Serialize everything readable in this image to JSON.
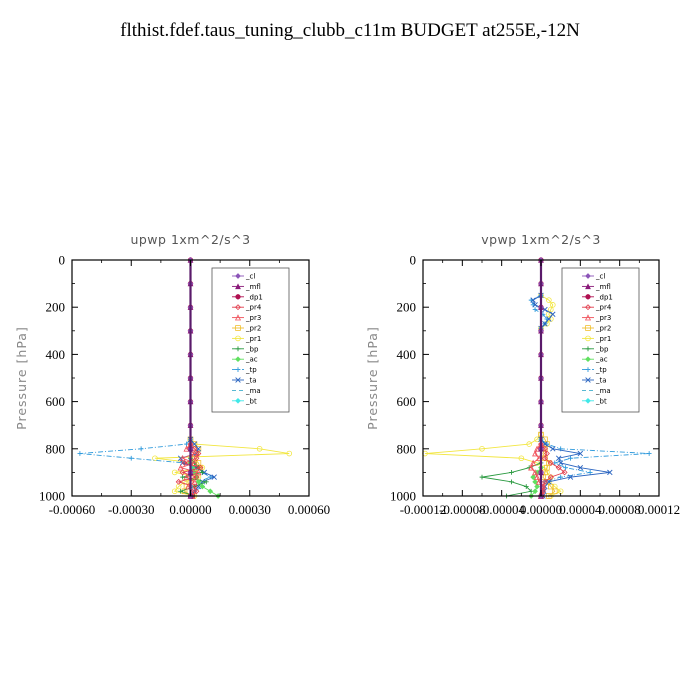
{
  "page_title": "flthist.fdef.taus_tuning_clubb_c11m  BUDGET at255E,-12N",
  "legend_entries": [
    {
      "label": "_cl",
      "color": "#8c55b8",
      "marker": "diamond"
    },
    {
      "label": "_mfl",
      "color": "#8a1a7a",
      "marker": "triangle"
    },
    {
      "label": "_dp1",
      "color": "#b01050",
      "marker": "circle"
    },
    {
      "label": "_pr4",
      "color": "#e23c4c",
      "marker": "diamond-open"
    },
    {
      "label": "_pr3",
      "color": "#f0505a",
      "marker": "triangle-open"
    },
    {
      "label": "_pr2",
      "color": "#f0c030",
      "marker": "square-open"
    },
    {
      "label": "_pr1",
      "color": "#f2e640",
      "marker": "circle-open"
    },
    {
      "label": "_bp",
      "color": "#2a9a40",
      "marker": "plus"
    },
    {
      "label": "_ac",
      "color": "#5fe05f",
      "marker": "diamond"
    },
    {
      "label": "_tp",
      "color": "#2f9adc",
      "marker": "plus"
    },
    {
      "label": "_ta",
      "color": "#2a64c0",
      "marker": "x"
    },
    {
      "label": "_ma",
      "color": "#40aecc",
      "marker": "none"
    },
    {
      "label": "_bt",
      "color": "#40e8e8",
      "marker": "diamond"
    }
  ],
  "chart_data": [
    {
      "type": "line",
      "title": "upwp   1xm^2/s^3",
      "xlabel": "",
      "ylabel": "Pressure [hPa]",
      "xlim": [
        -0.0006,
        0.0006
      ],
      "ylim": [
        1000,
        0
      ],
      "xticks": [
        "-0.00060",
        "-0.00030",
        "0.00000",
        "0.00030",
        "0.00060"
      ],
      "yticks": [
        "0",
        "200",
        "400",
        "600",
        "800",
        "1000"
      ],
      "legend_position": "top-right",
      "series": [
        {
          "name": "_pr1",
          "y": [
            760,
            780,
            800,
            820,
            840,
            860,
            880,
            900,
            920,
            940,
            960,
            980,
            1000
          ],
          "x": [
            0,
            2e-05,
            0.00035,
            0.0005,
            -0.00018,
            2e-05,
            6e-05,
            -8e-05,
            4e-05,
            -3e-05,
            -6e-05,
            -8e-05,
            2e-05
          ]
        },
        {
          "name": "_pr2",
          "y": [
            760,
            780,
            800,
            820,
            840,
            860,
            880,
            900,
            920,
            940,
            960,
            980,
            1000
          ],
          "x": [
            0,
            2e-05,
            4e-05,
            3e-05,
            2e-05,
            4e-05,
            5e-05,
            2e-05,
            3e-05,
            0.0,
            -2e-05,
            -3e-05,
            1e-05
          ]
        },
        {
          "name": "_tp",
          "y": [
            760,
            780,
            800,
            820,
            840,
            860,
            880,
            900,
            920,
            940,
            960,
            980,
            1000
          ],
          "x": [
            0,
            -2e-05,
            -0.00025,
            -0.00056,
            -0.0003,
            -3e-05,
            3e-05,
            6e-05,
            0.0001,
            4e-05,
            6e-05,
            2e-05,
            1e-05
          ]
        },
        {
          "name": "_ta",
          "y": [
            760,
            780,
            800,
            820,
            840,
            860,
            880,
            900,
            920,
            940,
            960,
            980,
            1000
          ],
          "x": [
            0,
            2e-05,
            4e-05,
            3e-05,
            -5e-05,
            -4e-05,
            3e-05,
            7e-05,
            0.00012,
            6e-05,
            4e-05,
            2e-05,
            1e-05
          ]
        },
        {
          "name": "_bp",
          "y": [
            840,
            860,
            880,
            900,
            920,
            940,
            960,
            980,
            1000
          ],
          "x": [
            0,
            2e-05,
            4e-05,
            6e-05,
            -4e-05,
            8e-05,
            2e-05,
            -5e-05,
            2e-05
          ]
        },
        {
          "name": "_ac",
          "y": [
            860,
            880,
            900,
            920,
            940,
            960,
            980,
            1000
          ],
          "x": [
            0,
            1e-05,
            2e-05,
            3e-05,
            4e-05,
            6e-05,
            0.0001,
            0.00014
          ]
        },
        {
          "name": "_pr4",
          "y": [
            780,
            800,
            820,
            840,
            860,
            880,
            900,
            920,
            940,
            960,
            980,
            1000
          ],
          "x": [
            0,
            2e-05,
            4e-05,
            3e-05,
            -3e-05,
            5e-05,
            -4e-05,
            3e-05,
            -6e-05,
            2e-05,
            3e-05,
            1e-05
          ]
        },
        {
          "name": "_pr3",
          "y": [
            780,
            800,
            820,
            840,
            860,
            880,
            900,
            920,
            940,
            960,
            980,
            1000
          ],
          "x": [
            0,
            -2e-05,
            2e-05,
            -4e-05,
            2e-05,
            -5e-05,
            4e-05,
            -2e-05,
            2e-05,
            -1e-05,
            1e-05,
            1e-05
          ]
        },
        {
          "name": "_ma",
          "y": [
            760,
            800,
            840,
            880,
            920,
            960,
            1000
          ],
          "x": [
            0,
            1e-05,
            -1e-05,
            1e-05,
            -1e-05,
            1e-05,
            0
          ]
        },
        {
          "name": "_dp1",
          "y": [
            0,
            100,
            200,
            300,
            400,
            500,
            600,
            700,
            800,
            900,
            1000
          ],
          "x": [
            0,
            0,
            0,
            0,
            0,
            0,
            0,
            0,
            0,
            0,
            0
          ]
        },
        {
          "name": "_mfl",
          "y": [
            0,
            100,
            200,
            300,
            400,
            500,
            600,
            700,
            800,
            900,
            1000
          ],
          "x": [
            0,
            0,
            0,
            0,
            0,
            0,
            0,
            0,
            0,
            0,
            0
          ]
        },
        {
          "name": "_cl",
          "y": [
            0,
            100,
            200,
            300,
            400,
            500,
            600,
            700,
            800,
            900,
            1000
          ],
          "x": [
            0,
            0,
            0,
            0,
            0,
            0,
            0,
            0,
            0,
            0,
            0
          ]
        }
      ]
    },
    {
      "type": "line",
      "title": "vpwp   1xm^2/s^3",
      "xlabel": "",
      "ylabel": "Pressure [hPa]",
      "xlim": [
        -0.00012,
        0.00012
      ],
      "ylim": [
        1000,
        0
      ],
      "xticks": [
        "-0.00012",
        "-0.00008",
        "-0.00004",
        "0.00000",
        "0.00004",
        "0.00008",
        "0.00012"
      ],
      "yticks": [
        "0",
        "200",
        "400",
        "600",
        "800",
        "1000"
      ],
      "legend_position": "top-right",
      "series": [
        {
          "name": "_pr1",
          "y": [
            150,
            170,
            190,
            210,
            230,
            250,
            270,
            290,
            740,
            760,
            780,
            800,
            820,
            840,
            860,
            880,
            900,
            920,
            940,
            960,
            980,
            1000
          ],
          "x": [
            0,
            8e-06,
            1.2e-05,
            1e-05,
            8e-06,
            1e-05,
            6e-06,
            0,
            0,
            -4e-06,
            -1.2e-05,
            -6e-05,
            -0.000118,
            -2e-05,
            -4e-06,
            4e-06,
            6e-06,
            1e-05,
            8e-06,
            1.4e-05,
            2e-05,
            1e-05
          ]
        },
        {
          "name": "_pr2",
          "y": [
            740,
            760,
            780,
            800,
            820,
            840,
            860,
            880,
            900,
            920,
            940,
            960,
            980,
            1000
          ],
          "x": [
            0,
            4e-06,
            6e-06,
            4e-06,
            2e-06,
            4e-06,
            8e-06,
            6e-06,
            4e-06,
            2e-06,
            6e-06,
            1e-05,
            1.4e-05,
            8e-06
          ]
        },
        {
          "name": "_tp",
          "y": [
            150,
            170,
            190,
            210,
            230,
            250,
            270,
            290,
            760,
            780,
            800,
            820,
            840,
            860,
            880,
            900,
            920,
            940,
            960,
            980,
            1000
          ],
          "x": [
            0,
            -1e-05,
            -8e-06,
            -6e-06,
            2e-06,
            6e-06,
            4e-06,
            0,
            0,
            6e-06,
            2e-05,
            0.00011,
            3e-05,
            1.4e-05,
            2.5e-05,
            5e-05,
            2e-05,
            4e-06,
            2e-06,
            2e-06,
            1e-06
          ]
        },
        {
          "name": "_ta",
          "y": [
            150,
            170,
            190,
            210,
            230,
            250,
            270,
            290,
            760,
            780,
            800,
            820,
            840,
            860,
            880,
            900,
            920,
            940,
            960,
            980,
            1000
          ],
          "x": [
            0,
            -8e-06,
            -6e-06,
            4e-06,
            1.2e-05,
            8e-06,
            4e-06,
            0,
            0,
            4e-06,
            1.2e-05,
            4e-05,
            1.8e-05,
            2e-05,
            4e-05,
            7e-05,
            3e-05,
            8e-06,
            4e-06,
            3e-06,
            2e-06
          ]
        },
        {
          "name": "_bp",
          "y": [
            860,
            880,
            900,
            920,
            940,
            960,
            980,
            1000
          ],
          "x": [
            0,
            -1.2e-05,
            -3e-05,
            -6e-05,
            -3e-05,
            -1.5e-05,
            -1e-05,
            -3.5e-05
          ]
        },
        {
          "name": "_ac",
          "y": [
            880,
            900,
            920,
            940,
            960,
            980,
            1000
          ],
          "x": [
            0,
            -4e-06,
            -8e-06,
            -6e-06,
            -4e-06,
            -6e-06,
            -1e-05
          ]
        },
        {
          "name": "_pr4",
          "y": [
            780,
            800,
            820,
            840,
            860,
            880,
            900,
            920,
            940,
            960,
            980,
            1000
          ],
          "x": [
            0,
            4e-06,
            6e-06,
            4e-06,
            1e-05,
            1.8e-05,
            2.4e-05,
            1e-05,
            4e-06,
            2e-06,
            2e-06,
            1e-06
          ]
        },
        {
          "name": "_pr3",
          "y": [
            780,
            800,
            820,
            840,
            860,
            880,
            900,
            920,
            940,
            960,
            980,
            1000
          ],
          "x": [
            0,
            -4e-06,
            -6e-06,
            -2e-06,
            -8e-06,
            -1e-05,
            -6e-06,
            -4e-06,
            -2e-06,
            2e-06,
            1e-06,
            0
          ]
        },
        {
          "name": "_dp1",
          "y": [
            0,
            100,
            200,
            300,
            400,
            500,
            600,
            700,
            800,
            900,
            1000
          ],
          "x": [
            0,
            0,
            0,
            0,
            0,
            0,
            0,
            0,
            0,
            0,
            0
          ]
        },
        {
          "name": "_mfl",
          "y": [
            0,
            100,
            200,
            300,
            400,
            500,
            600,
            700,
            800,
            900,
            1000
          ],
          "x": [
            0,
            0,
            0,
            0,
            0,
            0,
            0,
            0,
            0,
            0,
            0
          ]
        },
        {
          "name": "_cl",
          "y": [
            0,
            100,
            200,
            300,
            400,
            500,
            600,
            700,
            800,
            900,
            1000
          ],
          "x": [
            0,
            0,
            0,
            0,
            0,
            0,
            0,
            0,
            0,
            0,
            0
          ]
        }
      ]
    }
  ]
}
